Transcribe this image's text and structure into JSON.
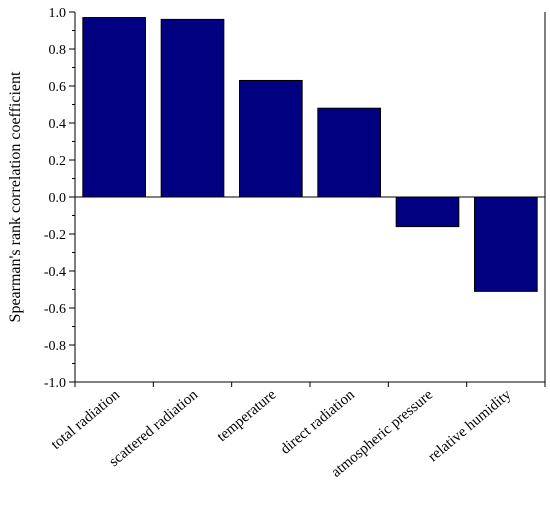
{
  "chart_data": {
    "type": "bar",
    "title": "",
    "xlabel": "",
    "ylabel": "Spearman's rank correlation coefficient",
    "ylim": [
      -1.0,
      1.0
    ],
    "yticks": [
      "1.0",
      "0.8",
      "0.6",
      "0.4",
      "0.2",
      "0.0",
      "-0.2",
      "-0.4",
      "-0.6",
      "-0.8",
      "-1.0"
    ],
    "ytick_values": [
      1.0,
      0.8,
      0.6,
      0.4,
      0.2,
      0.0,
      -0.2,
      -0.4,
      -0.6,
      -0.8,
      -1.0
    ],
    "categories": [
      "total radiation",
      "scattered radiation",
      "temperature",
      "direct radiation",
      "atmospheric pressure",
      "relative humidity"
    ],
    "values": [
      0.97,
      0.96,
      0.63,
      0.48,
      -0.16,
      -0.51
    ],
    "bar_color": "#000080",
    "grid": false,
    "legend": "none"
  }
}
